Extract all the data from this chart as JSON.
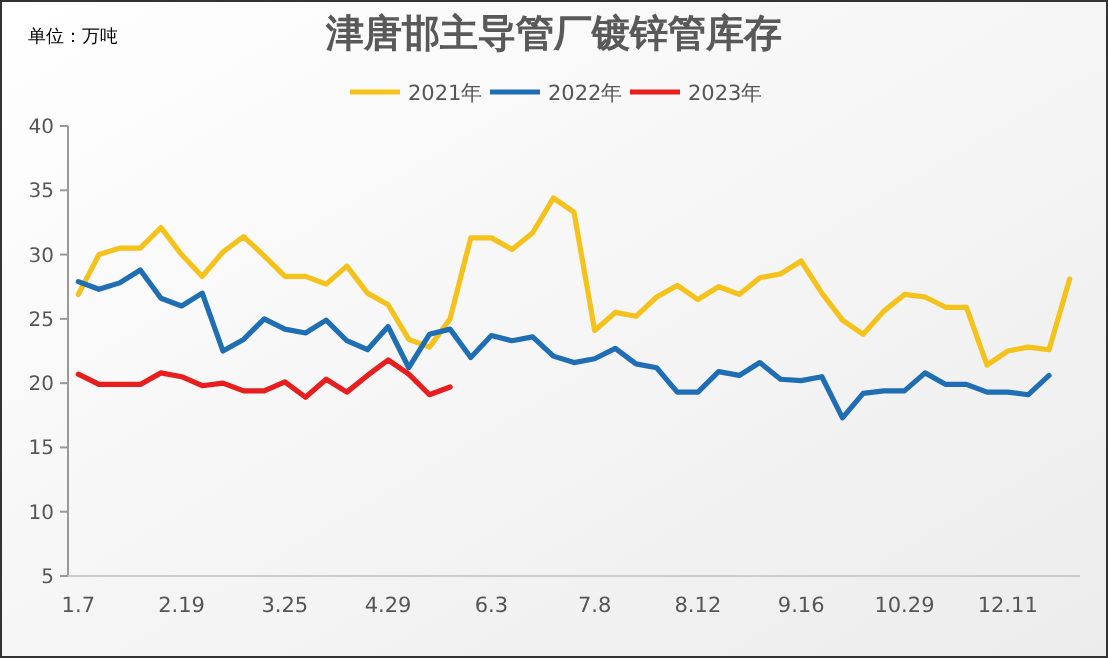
{
  "chart_data": {
    "type": "line",
    "title": "津唐邯主导管厂镀锌管库存",
    "ylabel": "单位：万吨",
    "categories": [
      "1.7",
      null,
      null,
      null,
      null,
      "2.19",
      null,
      null,
      null,
      null,
      "3.25",
      null,
      null,
      null,
      null,
      "4.29",
      null,
      null,
      null,
      null,
      "6.3",
      null,
      null,
      null,
      null,
      "7.8",
      null,
      null,
      null,
      null,
      "8.12",
      null,
      null,
      null,
      null,
      "9.16",
      null,
      null,
      null,
      null,
      "10.29",
      null,
      null,
      null,
      null,
      "12.11",
      null,
      null,
      null
    ],
    "series": [
      {
        "name": "2021年",
        "color": "#f5c21b",
        "values": [
          26.9,
          30.0,
          30.5,
          30.5,
          32.1,
          30.0,
          28.3,
          30.2,
          31.4,
          29.9,
          28.3,
          28.3,
          27.7,
          29.1,
          27.0,
          26.1,
          23.4,
          22.8,
          25.0,
          31.3,
          31.3,
          30.4,
          31.7,
          34.4,
          33.3,
          24.1,
          25.5,
          25.2,
          26.7,
          27.6,
          26.5,
          27.5,
          26.9,
          28.2,
          28.5,
          29.5,
          27.0,
          24.9,
          23.8,
          25.6,
          26.9,
          26.7,
          25.9,
          25.9,
          21.4,
          22.5,
          22.8,
          22.6,
          28.1
        ]
      },
      {
        "name": "2022年",
        "color": "#1f6eb3",
        "values": [
          27.9,
          27.3,
          27.8,
          28.8,
          26.6,
          26.0,
          27.0,
          22.5,
          23.4,
          25.0,
          24.2,
          23.9,
          24.9,
          23.3,
          22.6,
          24.4,
          21.2,
          23.8,
          24.2,
          22.0,
          23.7,
          23.3,
          23.6,
          22.1,
          21.6,
          21.9,
          22.7,
          21.5,
          21.2,
          19.3,
          19.3,
          20.9,
          20.6,
          21.6,
          20.3,
          20.2,
          20.5,
          17.3,
          19.2,
          19.4,
          19.4,
          20.8,
          19.9,
          19.9,
          19.3,
          19.3,
          19.1,
          20.6,
          null
        ]
      },
      {
        "name": "2023年",
        "color": "#e81d1d",
        "values": [
          20.7,
          19.9,
          19.9,
          19.9,
          20.8,
          20.5,
          19.8,
          20.0,
          19.4,
          19.4,
          20.1,
          18.9,
          20.3,
          19.3,
          20.6,
          21.8,
          20.7,
          19.1,
          19.7,
          null,
          null,
          null,
          null,
          null,
          null,
          null,
          null,
          null,
          null,
          null,
          null,
          null,
          null,
          null,
          null,
          null,
          null,
          null,
          null,
          null,
          null,
          null,
          null,
          null,
          null,
          null,
          null,
          null,
          null
        ]
      }
    ],
    "ylim": [
      5,
      40
    ],
    "yticks": [
      5,
      10,
      15,
      20,
      25,
      30,
      35,
      40
    ],
    "legend": "top",
    "grid": false,
    "marker": "none",
    "line_style": "solid"
  }
}
